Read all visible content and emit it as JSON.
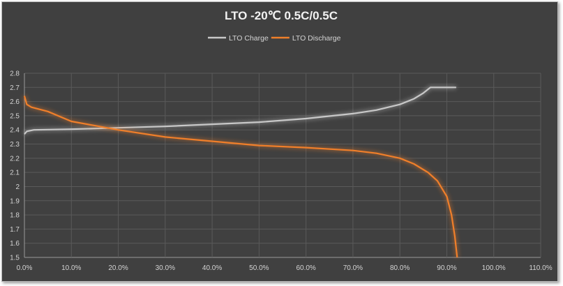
{
  "chart_data": {
    "type": "line",
    "title": "LTO -20℃ 0.5C/0.5C",
    "xlabel": "",
    "ylabel": "",
    "xlim": [
      0,
      110
    ],
    "ylim": [
      1.5,
      2.8
    ],
    "x_ticks": [
      "0.0%",
      "10.0%",
      "20.0%",
      "30.0%",
      "40.0%",
      "50.0%",
      "60.0%",
      "70.0%",
      "80.0%",
      "90.0%",
      "100.0%",
      "110.0%"
    ],
    "y_ticks": [
      "1.5",
      "1.6",
      "1.7",
      "1.8",
      "1.9",
      "2",
      "2.1",
      "2.2",
      "2.3",
      "2.4",
      "2.5",
      "2.6",
      "2.7",
      "2.8"
    ],
    "grid": true,
    "legend_position": "top",
    "background": "#404040",
    "series": [
      {
        "name": "LTO Charge",
        "color": "#c8c8c8",
        "x": [
          0,
          0.5,
          2,
          10,
          20,
          30,
          40,
          50,
          60,
          70,
          75,
          80,
          83,
          85,
          86.5,
          92
        ],
        "y": [
          2.37,
          2.39,
          2.4,
          2.405,
          2.415,
          2.425,
          2.44,
          2.455,
          2.48,
          2.515,
          2.54,
          2.58,
          2.62,
          2.66,
          2.7,
          2.7
        ]
      },
      {
        "name": "LTO Discharge",
        "color": "#f07f2a",
        "x": [
          0,
          0.5,
          1.5,
          5,
          10,
          15,
          20,
          30,
          40,
          50,
          60,
          70,
          75,
          80,
          83,
          86,
          88,
          90,
          91,
          91.7,
          92.2
        ],
        "y": [
          2.64,
          2.58,
          2.56,
          2.53,
          2.46,
          2.43,
          2.4,
          2.35,
          2.32,
          2.29,
          2.275,
          2.255,
          2.235,
          2.2,
          2.16,
          2.1,
          2.04,
          1.93,
          1.8,
          1.65,
          1.5
        ]
      }
    ]
  }
}
